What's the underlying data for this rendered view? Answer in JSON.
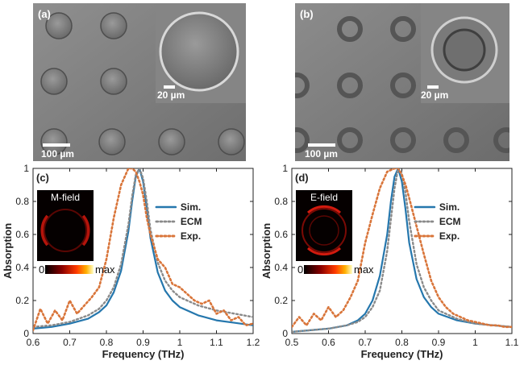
{
  "panels": {
    "a": {
      "label": "(a)",
      "scale_main": "100 µm",
      "scale_inset": "20 µm"
    },
    "b": {
      "label": "(b)",
      "scale_main": "100 µm",
      "scale_inset": "20 µm"
    }
  },
  "colors": {
    "sim": "#2577ad",
    "ecm": "#8a8a8a",
    "exp": "#d9753a"
  },
  "chart_data": [
    {
      "type": "line",
      "panel_label": "(c)",
      "xlabel": "Frequency (THz)",
      "ylabel": "Absorption",
      "xlim": [
        0.6,
        1.2
      ],
      "ylim": [
        0,
        1
      ],
      "xticks": [
        "0.6",
        "0.7",
        "0.8",
        "0.9",
        "1",
        "1.1",
        "1.2"
      ],
      "xtick_values": [
        0.6,
        0.7,
        0.8,
        0.9,
        1.0,
        1.1,
        1.2
      ],
      "yticks": [
        "0",
        "0.2",
        "0.4",
        "0.6",
        "0.8",
        "1"
      ],
      "ytick_values": [
        0,
        0.2,
        0.4,
        0.6,
        0.8,
        1.0
      ],
      "legend_position": "right",
      "inset": {
        "title": "M-field",
        "cbar_min": "0",
        "cbar_max": "max"
      },
      "series": [
        {
          "name": "Sim.",
          "style": "solid",
          "x": [
            0.6,
            0.65,
            0.7,
            0.75,
            0.78,
            0.8,
            0.82,
            0.84,
            0.86,
            0.87,
            0.88,
            0.89,
            0.9,
            0.91,
            0.92,
            0.94,
            0.96,
            0.98,
            1.0,
            1.05,
            1.1,
            1.15,
            1.2
          ],
          "y": [
            0.03,
            0.04,
            0.06,
            0.09,
            0.13,
            0.17,
            0.25,
            0.38,
            0.62,
            0.8,
            0.95,
            1.0,
            0.92,
            0.76,
            0.58,
            0.37,
            0.26,
            0.2,
            0.16,
            0.11,
            0.08,
            0.065,
            0.05
          ]
        },
        {
          "name": "ECM",
          "style": "dotted",
          "x": [
            0.6,
            0.65,
            0.7,
            0.75,
            0.78,
            0.8,
            0.82,
            0.84,
            0.86,
            0.87,
            0.88,
            0.89,
            0.9,
            0.91,
            0.92,
            0.94,
            0.96,
            0.98,
            1.0,
            1.05,
            1.1,
            1.15,
            1.2
          ],
          "y": [
            0.04,
            0.05,
            0.07,
            0.11,
            0.15,
            0.2,
            0.28,
            0.42,
            0.66,
            0.83,
            0.96,
            1.0,
            0.94,
            0.8,
            0.63,
            0.43,
            0.32,
            0.26,
            0.22,
            0.17,
            0.14,
            0.12,
            0.1
          ]
        },
        {
          "name": "Exp.",
          "style": "dotted",
          "x": [
            0.6,
            0.62,
            0.64,
            0.66,
            0.68,
            0.7,
            0.72,
            0.74,
            0.76,
            0.78,
            0.8,
            0.82,
            0.84,
            0.86,
            0.87,
            0.88,
            0.89,
            0.9,
            0.91,
            0.92,
            0.94,
            0.96,
            0.98,
            1.0,
            1.02,
            1.04,
            1.06,
            1.08,
            1.1,
            1.12,
            1.14,
            1.16,
            1.18,
            1.2
          ],
          "y": [
            0.02,
            0.15,
            0.06,
            0.14,
            0.08,
            0.2,
            0.12,
            0.17,
            0.22,
            0.28,
            0.45,
            0.7,
            0.9,
            1.0,
            1.0,
            0.98,
            0.92,
            0.84,
            0.7,
            0.6,
            0.45,
            0.4,
            0.3,
            0.28,
            0.24,
            0.2,
            0.18,
            0.2,
            0.12,
            0.14,
            0.08,
            0.1,
            0.05,
            0.06
          ]
        }
      ]
    },
    {
      "type": "line",
      "panel_label": "(d)",
      "xlabel": "Frequency (THz)",
      "ylabel": "Absorption",
      "xlim": [
        0.5,
        1.1
      ],
      "ylim": [
        0,
        1
      ],
      "xticks": [
        "0.5",
        "0.6",
        "0.7",
        "0.8",
        "0.9",
        "1",
        "1.1"
      ],
      "xtick_values": [
        0.5,
        0.6,
        0.7,
        0.8,
        0.9,
        1.0,
        1.1
      ],
      "yticks": [
        "0",
        "0.2",
        "0.4",
        "0.6",
        "0.8",
        "1"
      ],
      "ytick_values": [
        0,
        0.2,
        0.4,
        0.6,
        0.8,
        1.0
      ],
      "legend_position": "right",
      "inset": {
        "title": "E-field",
        "cbar_min": "0",
        "cbar_max": "max"
      },
      "series": [
        {
          "name": "Sim.",
          "style": "solid",
          "x": [
            0.5,
            0.55,
            0.6,
            0.65,
            0.68,
            0.7,
            0.72,
            0.74,
            0.76,
            0.77,
            0.78,
            0.79,
            0.8,
            0.81,
            0.82,
            0.84,
            0.86,
            0.88,
            0.9,
            0.95,
            1.0,
            1.05,
            1.1
          ],
          "y": [
            0.01,
            0.02,
            0.03,
            0.05,
            0.08,
            0.12,
            0.2,
            0.35,
            0.6,
            0.8,
            0.95,
            1.0,
            0.92,
            0.75,
            0.55,
            0.33,
            0.22,
            0.16,
            0.12,
            0.08,
            0.06,
            0.05,
            0.04
          ]
        },
        {
          "name": "ECM",
          "style": "dotted",
          "x": [
            0.5,
            0.55,
            0.6,
            0.65,
            0.68,
            0.7,
            0.72,
            0.74,
            0.76,
            0.78,
            0.79,
            0.8,
            0.81,
            0.82,
            0.84,
            0.86,
            0.88,
            0.9,
            0.95,
            1.0,
            1.05,
            1.1
          ],
          "y": [
            0.01,
            0.02,
            0.03,
            0.05,
            0.07,
            0.1,
            0.16,
            0.26,
            0.5,
            0.88,
            1.0,
            0.97,
            0.85,
            0.68,
            0.42,
            0.28,
            0.2,
            0.14,
            0.09,
            0.06,
            0.05,
            0.04
          ]
        },
        {
          "name": "Exp.",
          "style": "dotted",
          "x": [
            0.5,
            0.52,
            0.54,
            0.56,
            0.58,
            0.6,
            0.62,
            0.64,
            0.66,
            0.68,
            0.7,
            0.72,
            0.74,
            0.76,
            0.78,
            0.79,
            0.8,
            0.81,
            0.82,
            0.84,
            0.86,
            0.88,
            0.9,
            0.92,
            0.94,
            0.96,
            0.98,
            1.0,
            1.02,
            1.04,
            1.06,
            1.08,
            1.1
          ],
          "y": [
            0.04,
            0.1,
            0.05,
            0.12,
            0.08,
            0.16,
            0.1,
            0.14,
            0.22,
            0.32,
            0.55,
            0.72,
            0.88,
            0.98,
            1.0,
            1.0,
            0.96,
            0.9,
            0.82,
            0.65,
            0.48,
            0.32,
            0.22,
            0.16,
            0.12,
            0.1,
            0.08,
            0.07,
            0.06,
            0.05,
            0.05,
            0.04,
            0.04
          ]
        }
      ]
    }
  ]
}
